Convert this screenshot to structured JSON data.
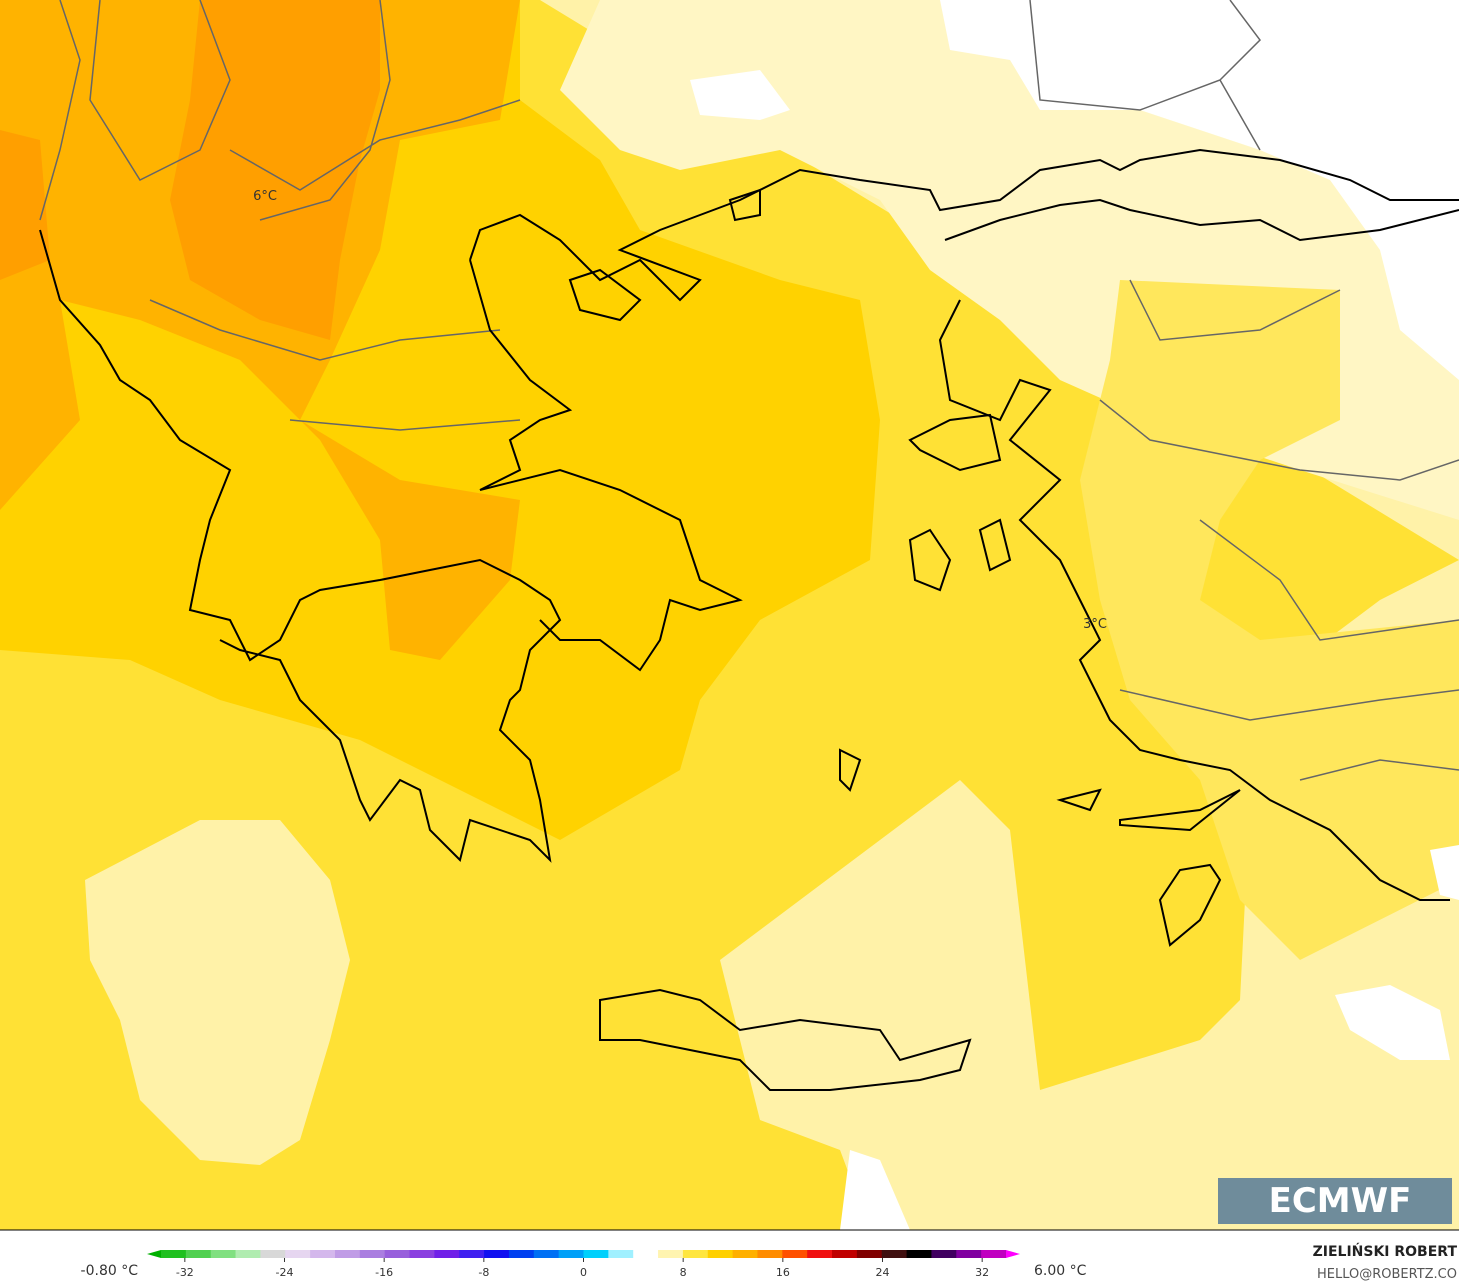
{
  "map": {
    "labels": [
      {
        "text": "6°C"
      },
      {
        "text": "3°C"
      }
    ]
  },
  "colorbar": {
    "min_label": "-0.80 °C",
    "max_label": "6.00 °C",
    "range": [
      -36,
      36
    ],
    "ticks": [
      -32,
      -24,
      -16,
      -8,
      0,
      8,
      16,
      24,
      32
    ],
    "colors": [
      "#00b000",
      "#20c020",
      "#50d050",
      "#80e080",
      "#b0ecb0",
      "#d8d8d8",
      "#e6d6f0",
      "#d4b8ec",
      "#c09ce6",
      "#aa7ee0",
      "#9860dc",
      "#8a40e0",
      "#7020e8",
      "#4020f0",
      "#1010f0",
      "#0040f0",
      "#0070f4",
      "#00a0f8",
      "#00d0fc",
      "#a0f0ff",
      "#ffffff",
      "#fff4b0",
      "#ffe640",
      "#ffd000",
      "#ffb000",
      "#ff8c00",
      "#ff5000",
      "#f01010",
      "#c00000",
      "#800000",
      "#401010",
      "#000000",
      "#400060",
      "#8000a0",
      "#c000c0",
      "#ff00ff"
    ]
  },
  "footer": {
    "author": "ZIELIŃSKI ROBERT",
    "email": "HELLO@ROBERTZ.CO",
    "logo": "ECMWF"
  }
}
